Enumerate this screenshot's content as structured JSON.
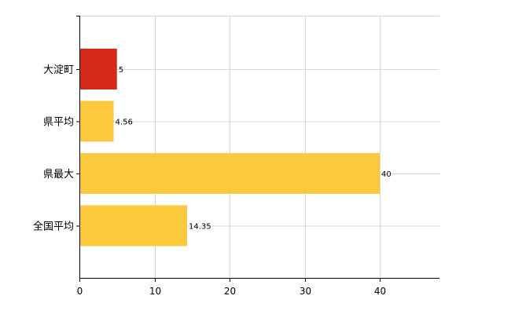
{
  "chart_data": {
    "type": "bar",
    "orientation": "horizontal",
    "categories": [
      "大淀町",
      "県平均",
      "県最大",
      "全国平均"
    ],
    "values": [
      5,
      4.56,
      40,
      14.35
    ],
    "value_labels": [
      "5",
      "4.56",
      "40",
      "14.35"
    ],
    "bar_colors": [
      "#d42a1c",
      "#fcc83c",
      "#fcc83c",
      "#fcc83c"
    ],
    "xlim": [
      0,
      48
    ],
    "xticks": [
      0,
      10,
      20,
      30,
      40
    ],
    "xtick_labels": [
      "0",
      "10",
      "20",
      "30",
      "40"
    ],
    "grid": true,
    "legend": "none"
  }
}
